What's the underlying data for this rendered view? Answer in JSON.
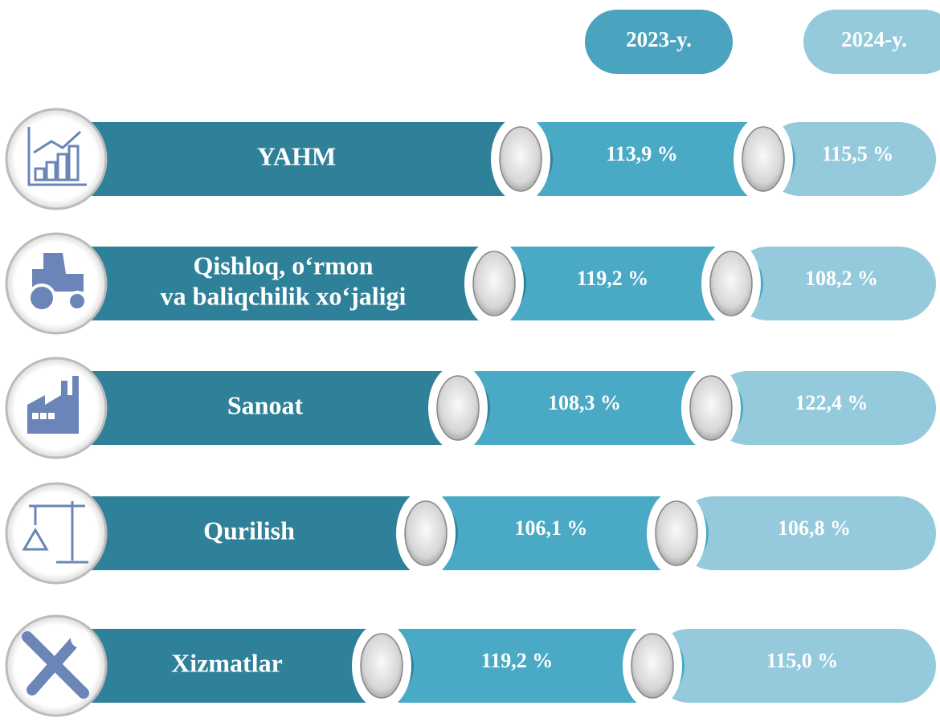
{
  "header": {
    "years": [
      "2023-y.",
      "2024-y."
    ]
  },
  "rows": [
    {
      "label": [
        "YAHM"
      ],
      "values": [
        "113,9 %",
        "115,5 %"
      ]
    },
    {
      "label": [
        "Qishloq, o‘rmon",
        "va baliqchilik xo‘jaligi"
      ],
      "values": [
        "119,2 %",
        "108,2 %"
      ]
    },
    {
      "label": [
        "Sanoat"
      ],
      "values": [
        "108,3 %",
        "122,4 %"
      ]
    },
    {
      "label": [
        "Qurilish"
      ],
      "values": [
        "106,1 %",
        "106,8 %"
      ]
    },
    {
      "label": [
        "Xizmatlar"
      ],
      "values": [
        "119,2 %",
        "115,0 %"
      ]
    }
  ]
}
